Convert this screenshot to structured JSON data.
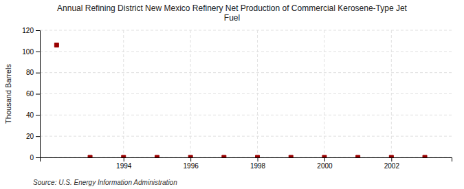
{
  "chart_data": {
    "type": "scatter",
    "title": "Annual Refining District New Mexico Refinery Net Production of Commercial Kerosene-Type Jet\nFuel",
    "ylabel": "Thousand Barrels",
    "source": "Source: U.S. Energy Information Administration",
    "x": [
      1992,
      1993,
      1994,
      1995,
      1996,
      1997,
      1998,
      1999,
      2000,
      2001,
      2002,
      2003
    ],
    "values": [
      106,
      0,
      0,
      0,
      0,
      0,
      0,
      0,
      0,
      0,
      0,
      0
    ],
    "color": "#990000",
    "marker": "square",
    "xlim": [
      1991.5,
      2003.8
    ],
    "xticks": [
      1994,
      1996,
      1998,
      2000,
      2002
    ],
    "ylim": [
      0,
      120
    ],
    "yticks": [
      0,
      20,
      40,
      60,
      80,
      100,
      120
    ],
    "grid": true
  }
}
